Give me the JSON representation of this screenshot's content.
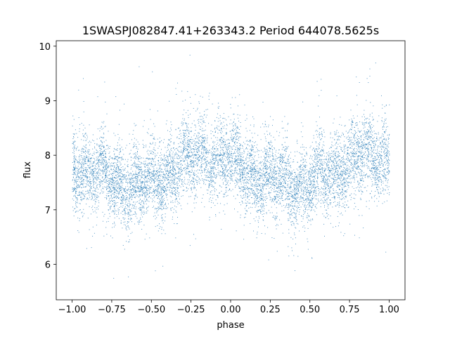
{
  "chart_data": {
    "type": "scatter",
    "title": "1SWASPJ082847.41+263343.2 Period 644078.5625s",
    "xlabel": "phase",
    "ylabel": "flux",
    "xlim": [
      -1.1,
      1.1
    ],
    "ylim": [
      5.35,
      10.1
    ],
    "xticks": [
      -1.0,
      -0.75,
      -0.5,
      -0.25,
      0.0,
      0.25,
      0.5,
      0.75,
      1.0
    ],
    "xtick_labels": [
      "−1.00",
      "−0.75",
      "−0.50",
      "−0.25",
      "0.00",
      "0.25",
      "0.50",
      "0.75",
      "1.00"
    ],
    "yticks": [
      6,
      7,
      8,
      9,
      10
    ],
    "ytick_labels": [
      "6",
      "7",
      "8",
      "9",
      "10"
    ],
    "grid": false,
    "legend": "none",
    "point_color": "#1f77b4",
    "x_range": [
      -1.0,
      1.0
    ],
    "trend": {
      "x": [
        -1.0,
        -0.9,
        -0.8,
        -0.7,
        -0.6,
        -0.5,
        -0.4,
        -0.3,
        -0.2,
        -0.1,
        0.0,
        0.1,
        0.2,
        0.3,
        0.4,
        0.5,
        0.6,
        0.7,
        0.8,
        0.9,
        1.0
      ],
      "y": [
        7.8,
        7.75,
        7.6,
        7.5,
        7.45,
        7.5,
        7.65,
        7.9,
        8.0,
        8.0,
        7.9,
        7.75,
        7.6,
        7.5,
        7.45,
        7.5,
        7.65,
        7.85,
        7.95,
        8.0,
        8.0
      ]
    },
    "typical_spread": 0.35,
    "approx_point_count": 9000
  }
}
